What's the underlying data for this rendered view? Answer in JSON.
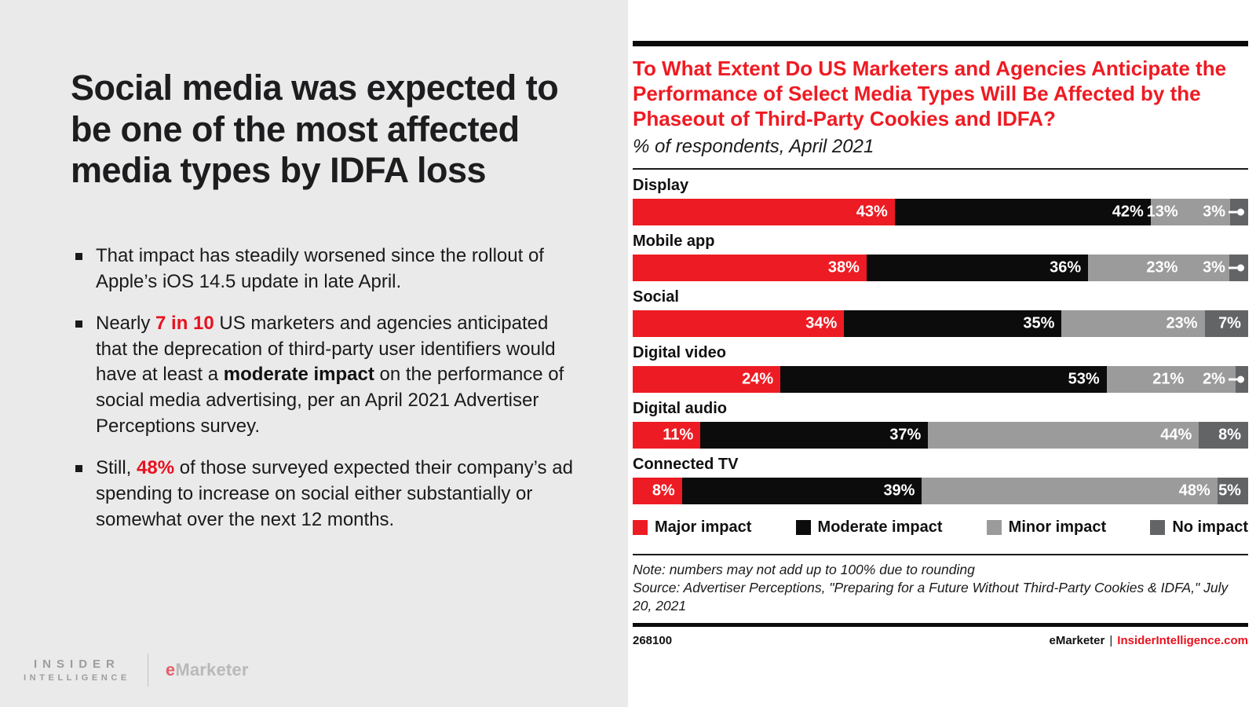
{
  "colors": {
    "left_bg": "#eaeaea",
    "accent_red": "#e8121f",
    "title_red": "#ee1b23",
    "major": "#ed1c24",
    "moderate": "#0c0c0c",
    "minor": "#9b9b9b",
    "no_impact": "#636466"
  },
  "left_panel": {
    "headline": "Social media was expected to be one of the most affected media types by IDFA loss",
    "bullets": [
      [
        {
          "text": "That impact has steadily worsened since the rollout of Apple’s iOS 14.5 update in late April.",
          "style": "normal"
        }
      ],
      [
        {
          "text": "Nearly ",
          "style": "normal"
        },
        {
          "text": "7 in 10",
          "style": "red-bold"
        },
        {
          "text": " US marketers and agencies anticipated that the deprecation of third-party user identifiers would have at least a ",
          "style": "normal"
        },
        {
          "text": "moderate impact",
          "style": "bold"
        },
        {
          "text": " on the performance of social media advertising, per an April 2021 Advertiser Perceptions survey.",
          "style": "normal"
        }
      ],
      [
        {
          "text": "Still, ",
          "style": "normal"
        },
        {
          "text": "48%",
          "style": "red-bold"
        },
        {
          "text": " of those surveyed expected their company’s ad spending to increase on social either substantially or somewhat over the next 12 months.",
          "style": "normal"
        }
      ]
    ],
    "brand": {
      "insider_top": "INSIDER",
      "insider_bottom": "INTELLIGENCE",
      "emarketer_e": "e",
      "emarketer_text": "Marketer"
    }
  },
  "chart": {
    "title": "To What Extent Do US Marketers and Agencies Anticipate the Performance of Select Media Types Will Be Affected by the Phaseout of Third-Party Cookies and IDFA?",
    "subtitle": "% of respondents, April 2021",
    "note": "Note: numbers may not add up to 100% due to rounding",
    "source": "Source: Advertiser Perceptions, \"Preparing for a Future Without Third-Party Cookies & IDFA,\" July 20, 2021",
    "footer_id": "268100",
    "footer_brand_left": "eMarketer",
    "footer_divider": "|",
    "footer_brand_right": "InsiderIntelligence.com"
  },
  "chart_data": {
    "type": "bar",
    "orientation": "horizontal-stacked",
    "title": "To What Extent Do US Marketers and Agencies Anticipate the Performance of Select Media Types Will Be Affected by the Phaseout of Third-Party Cookies and IDFA?",
    "subtitle": "% of respondents, April 2021",
    "categories": [
      "Display",
      "Mobile app",
      "Social",
      "Digital video",
      "Digital audio",
      "Connected TV"
    ],
    "series": [
      {
        "name": "Major impact",
        "color": "#ed1c24",
        "values": [
          43,
          38,
          34,
          24,
          11,
          8
        ]
      },
      {
        "name": "Moderate impact",
        "color": "#0c0c0c",
        "values": [
          42,
          36,
          35,
          53,
          37,
          39
        ]
      },
      {
        "name": "Minor impact",
        "color": "#9b9b9b",
        "values": [
          13,
          23,
          23,
          21,
          44,
          48
        ]
      },
      {
        "name": "No impact",
        "color": "#636466",
        "values": [
          3,
          3,
          7,
          2,
          8,
          5
        ]
      }
    ],
    "value_suffix": "%",
    "xlim": [
      0,
      100
    ],
    "grid": false,
    "legend_position": "bottom"
  }
}
